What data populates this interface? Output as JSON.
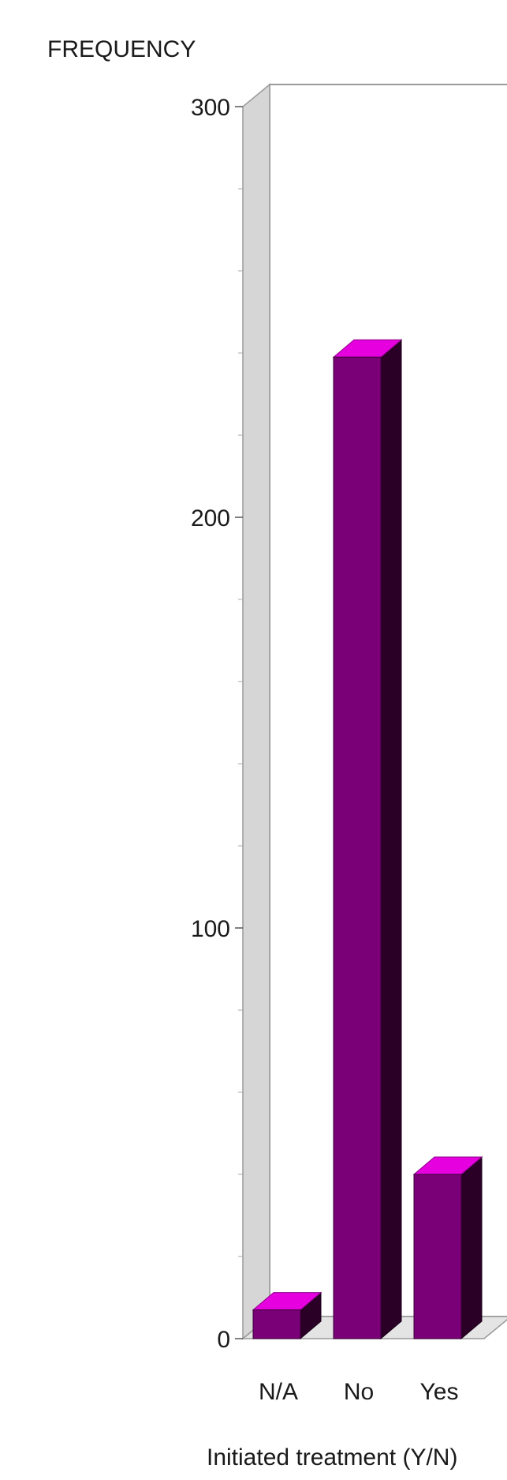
{
  "chart_data": {
    "type": "bar",
    "style": "3d",
    "title": "",
    "ylabel": "FREQUENCY",
    "xlabel": "Initiated treatment (Y/N)",
    "categories": [
      "N/A",
      "No",
      "Yes"
    ],
    "values": [
      7,
      239,
      40
    ],
    "ylim": [
      0,
      300
    ],
    "yticks": [
      0,
      100,
      200,
      300
    ],
    "minor_tick_step": 20,
    "grid": false,
    "legend": "none",
    "colors": {
      "bar_front": "#7a0077",
      "bar_top": "#e600df",
      "bar_side": "#2a0026",
      "back_wall": "#ffffff",
      "left_wall": "#d6d6d6",
      "floor": "#e4e4e4",
      "frame": "#9a9a9a"
    }
  }
}
